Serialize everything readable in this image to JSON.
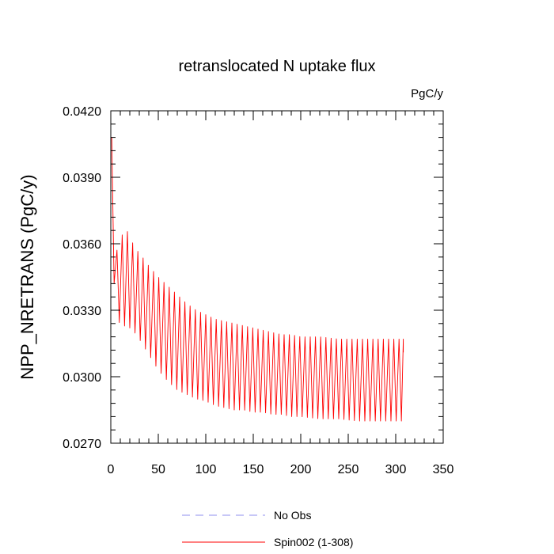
{
  "chart_data": {
    "type": "line",
    "title": "retranslocated N uptake flux",
    "units_label": "PgC/y",
    "xlabel": "",
    "ylabel": "NPP_NRETRANS  (PgC/y)",
    "xlim": [
      0,
      350
    ],
    "ylim": [
      0.027,
      0.042
    ],
    "xticks": [
      0,
      50,
      100,
      150,
      200,
      250,
      300,
      350
    ],
    "xtick_labels": [
      "0",
      "50",
      "100",
      "150",
      "200",
      "250",
      "300",
      "350"
    ],
    "yticks": [
      0.027,
      0.03,
      0.033,
      0.036,
      0.039,
      0.042
    ],
    "ytick_labels": [
      "0.0270",
      "0.0300",
      "0.0330",
      "0.0360",
      "0.0390",
      "0.0420"
    ],
    "legend_position": "bottom",
    "series": [
      {
        "name": "No Obs",
        "color": "#8f8fef",
        "dashed": true,
        "x": [],
        "y": []
      },
      {
        "name": "Spin002 (1-308)",
        "color": "#ff0000",
        "dashed": false,
        "envelope": {
          "x": [
            1,
            5,
            10,
            15,
            20,
            25,
            30,
            40,
            50,
            60,
            70,
            80,
            90,
            100,
            110,
            120,
            130,
            140,
            150,
            160,
            170,
            180,
            190,
            200,
            220,
            240,
            260,
            280,
            300,
            308
          ],
          "max": [
            0.0408,
            0.0355,
            0.0362,
            0.0367,
            0.0364,
            0.0358,
            0.0356,
            0.035,
            0.0345,
            0.0341,
            0.0337,
            0.0333,
            0.033,
            0.0328,
            0.0326,
            0.0325,
            0.0324,
            0.0323,
            0.0322,
            0.0321,
            0.032,
            0.0319,
            0.0319,
            0.0318,
            0.0318,
            0.0317,
            0.0317,
            0.0317,
            0.0317,
            0.0317
          ],
          "min": [
            0.0355,
            0.0334,
            0.0322,
            0.0323,
            0.0322,
            0.032,
            0.0317,
            0.031,
            0.0303,
            0.0298,
            0.0294,
            0.0292,
            0.029,
            0.0289,
            0.0287,
            0.0286,
            0.0285,
            0.0285,
            0.0284,
            0.0284,
            0.0283,
            0.0283,
            0.0282,
            0.0282,
            0.0281,
            0.0281,
            0.028,
            0.028,
            0.028,
            0.028
          ]
        },
        "cycle_period_years": 5.5,
        "end_value": 0.0311
      }
    ]
  }
}
